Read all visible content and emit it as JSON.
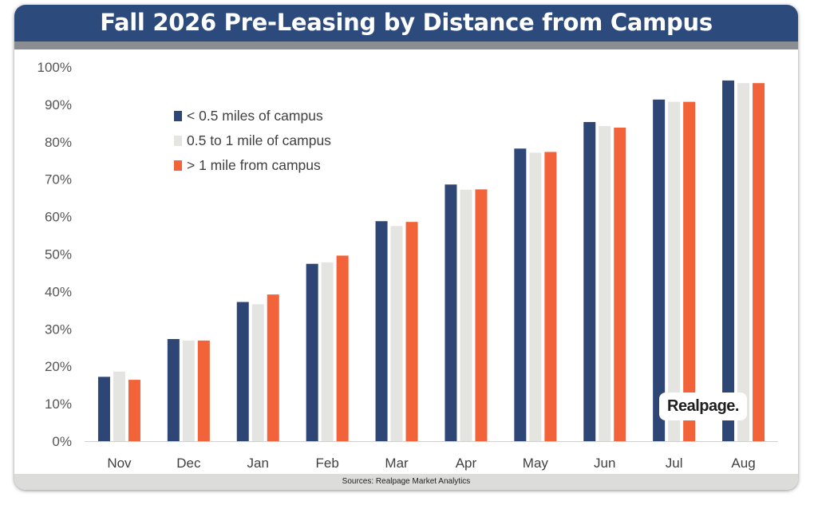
{
  "title": "Fall 2026 Pre-Leasing by Distance from Campus",
  "source": "Sources: Realpage Market Analytics",
  "logo": "Realpage.",
  "colors": {
    "header": "#2c4a7c",
    "series1": "#2e4676",
    "series2": "#e4e4e1",
    "series3": "#f2633a"
  },
  "legend": {
    "items": [
      {
        "label": "< 0.5 miles of campus",
        "color": "#2e4676"
      },
      {
        "label": "0.5 to 1 mile of campus",
        "color": "#e4e4e1"
      },
      {
        "label": "> 1 mile from campus",
        "color": "#f2633a"
      }
    ]
  },
  "chart_data": {
    "type": "bar",
    "title": "Fall 2026 Pre-Leasing by Distance from Campus",
    "categories": [
      "Nov",
      "Dec",
      "Jan",
      "Feb",
      "Mar",
      "Apr",
      "May",
      "Jun",
      "Jul",
      "Aug"
    ],
    "series": [
      {
        "name": "< 0.5 miles of campus",
        "color": "#2e4676",
        "values": [
          17.2,
          27.3,
          37.2,
          47.4,
          58.8,
          68.6,
          78.2,
          85.3,
          91.3,
          96.4
        ]
      },
      {
        "name": "0.5 to 1 mile of campus",
        "color": "#e4e4e1",
        "values": [
          18.6,
          26.9,
          36.6,
          47.8,
          57.5,
          67.2,
          77.1,
          84.2,
          90.7,
          95.7
        ]
      },
      {
        "name": "> 1 mile from campus",
        "color": "#f2633a",
        "values": [
          16.4,
          26.9,
          39.2,
          49.6,
          58.6,
          67.3,
          77.3,
          83.8,
          90.7,
          95.7
        ]
      }
    ],
    "yticks": [
      "0%",
      "10%",
      "20%",
      "30%",
      "40%",
      "50%",
      "60%",
      "70%",
      "80%",
      "90%",
      "100%"
    ],
    "ylim": [
      0,
      100
    ],
    "grid": false,
    "legend_position": "top-left"
  }
}
